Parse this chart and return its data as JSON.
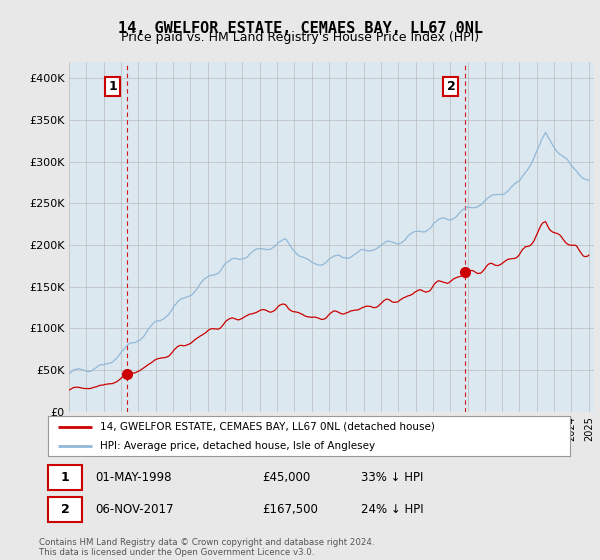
{
  "title": "14, GWELFOR ESTATE, CEMAES BAY, LL67 0NL",
  "subtitle": "Price paid vs. HM Land Registry's House Price Index (HPI)",
  "ylim": [
    0,
    420000
  ],
  "yticks": [
    0,
    50000,
    100000,
    150000,
    200000,
    250000,
    300000,
    350000,
    400000
  ],
  "ytick_labels": [
    "£0",
    "£50K",
    "£100K",
    "£150K",
    "£200K",
    "£250K",
    "£300K",
    "£350K",
    "£400K"
  ],
  "hpi_color": "#92b8d8",
  "price_color": "#cc0000",
  "sale1_year": 1998.33,
  "sale1_price": 45000,
  "sale2_year": 2017.84,
  "sale2_price": 167500,
  "legend_label1": "14, GWELFOR ESTATE, CEMAES BAY, LL67 0NL (detached house)",
  "legend_label2": "HPI: Average price, detached house, Isle of Anglesey",
  "table_row1": [
    "1",
    "01-MAY-1998",
    "£45,000",
    "33% ↓ HPI"
  ],
  "table_row2": [
    "2",
    "06-NOV-2017",
    "£167,500",
    "24% ↓ HPI"
  ],
  "footer": "Contains HM Land Registry data © Crown copyright and database right 2024.\nThis data is licensed under the Open Government Licence v3.0.",
  "background_color": "#e8e8e8",
  "plot_bg_color": "#dce8f0"
}
